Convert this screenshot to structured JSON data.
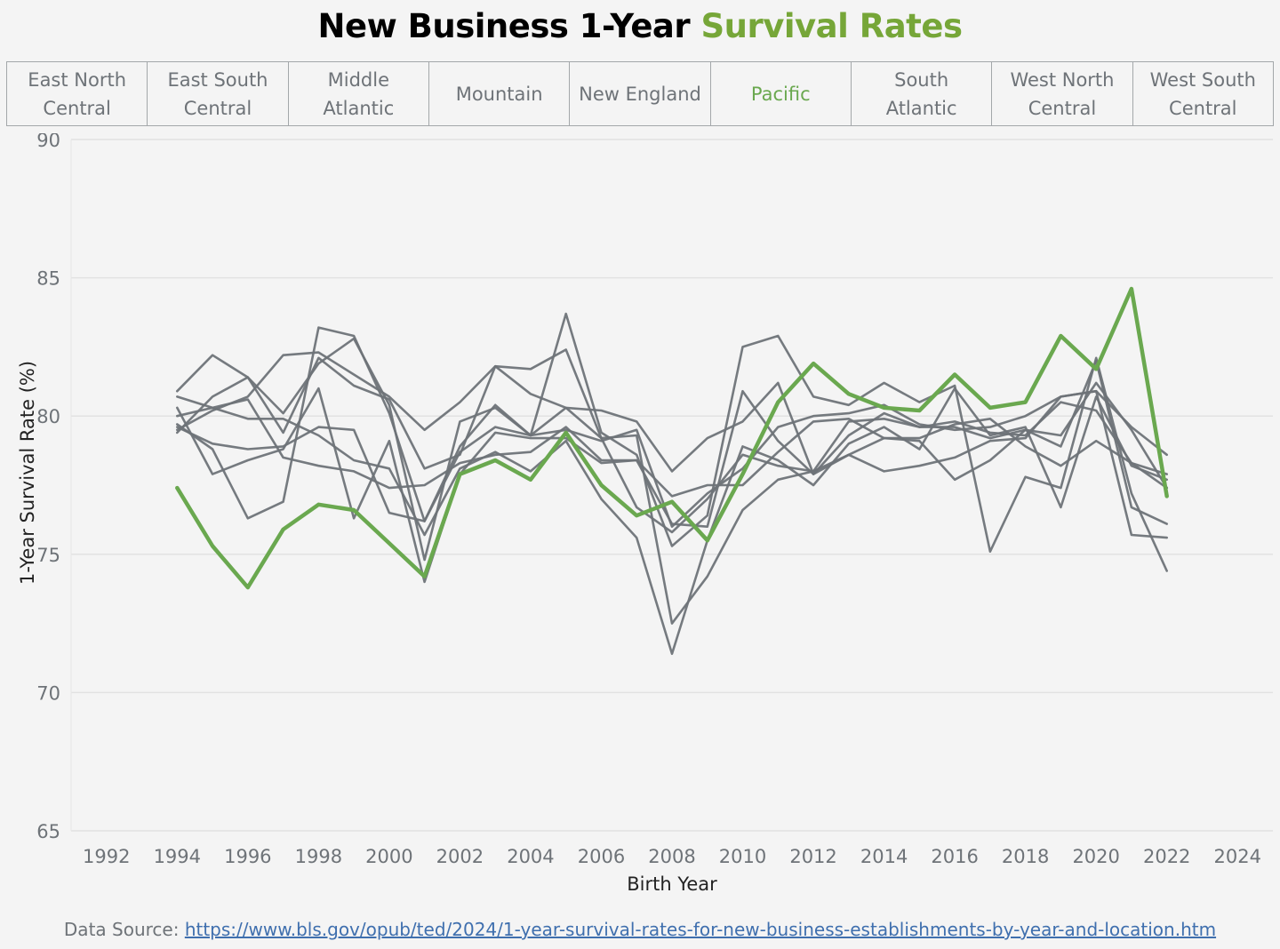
{
  "title": {
    "main": "New Business 1-Year ",
    "highlight": "Survival Rates"
  },
  "tabs": [
    {
      "label": "East North\nCentral",
      "active": false
    },
    {
      "label": "East South\nCentral",
      "active": false
    },
    {
      "label": "Middle\nAtlantic",
      "active": false
    },
    {
      "label": "Mountain",
      "active": false
    },
    {
      "label": "New England",
      "active": false
    },
    {
      "label": "Pacific",
      "active": true
    },
    {
      "label": "South\nAtlantic",
      "active": false
    },
    {
      "label": "West North\nCentral",
      "active": false
    },
    {
      "label": "West South\nCentral",
      "active": false
    }
  ],
  "source": {
    "prefix": "Data Source: ",
    "url": "https://www.bls.gov/opub/ted/2024/1-year-survival-rates-for-new-business-establishments-by-year-and-location.htm"
  },
  "colors": {
    "highlight": "#6aa84f",
    "other": "#6e7378",
    "grid": "#e2e2e2"
  },
  "chart_data": {
    "type": "line",
    "xlabel": "Birth Year",
    "ylabel": "1-Year Survival Rate (%)",
    "xlim": [
      1991,
      2025
    ],
    "ylim": [
      65,
      90
    ],
    "xticks": [
      1992,
      1994,
      1996,
      1998,
      2000,
      2002,
      2004,
      2006,
      2008,
      2010,
      2012,
      2014,
      2016,
      2018,
      2020,
      2022,
      2024
    ],
    "yticks": [
      65,
      70,
      75,
      80,
      85,
      90
    ],
    "grid": "horizontal",
    "highlight_series": "Pacific",
    "x": [
      1994,
      1995,
      1996,
      1997,
      1998,
      1999,
      2000,
      2001,
      2002,
      2003,
      2004,
      2005,
      2006,
      2007,
      2008,
      2009,
      2010,
      2011,
      2012,
      2013,
      2014,
      2015,
      2016,
      2017,
      2018,
      2019,
      2020,
      2021,
      2022
    ],
    "series": [
      {
        "name": "East North Central",
        "values": [
          80.9,
          82.2,
          81.4,
          80.1,
          81.9,
          82.8,
          80.4,
          74.8,
          79.8,
          80.3,
          79.3,
          79.5,
          79.1,
          79.5,
          76.0,
          77.2,
          78.1,
          79.6,
          80.0,
          80.1,
          80.4,
          79.7,
          79.5,
          79.6,
          80.0,
          80.7,
          80.9,
          79.6,
          78.6
        ]
      },
      {
        "name": "East South Central",
        "values": [
          80.3,
          77.9,
          78.4,
          78.8,
          81.0,
          76.3,
          79.1,
          74.0,
          77.9,
          79.4,
          79.2,
          79.2,
          78.3,
          78.4,
          76.1,
          76.0,
          80.9,
          79.1,
          77.9,
          78.6,
          78.0,
          78.2,
          78.5,
          79.1,
          79.2,
          80.7,
          80.9,
          75.7,
          75.6
        ]
      },
      {
        "name": "Middle Atlantic",
        "values": [
          79.7,
          78.8,
          76.3,
          76.9,
          83.2,
          82.9,
          80.1,
          76.2,
          78.9,
          80.4,
          79.3,
          83.7,
          79.4,
          78.6,
          75.3,
          76.4,
          82.5,
          82.9,
          80.7,
          80.4,
          81.2,
          80.5,
          81.1,
          75.1,
          77.8,
          77.4,
          82.1,
          77.2,
          74.4
        ]
      },
      {
        "name": "Mountain",
        "values": [
          79.5,
          80.2,
          80.7,
          82.2,
          82.3,
          81.5,
          80.7,
          79.5,
          80.5,
          81.8,
          80.8,
          80.3,
          80.2,
          79.8,
          78.0,
          79.2,
          79.8,
          81.2,
          77.9,
          79.3,
          80.1,
          79.6,
          79.6,
          79.2,
          79.5,
          79.3,
          81.2,
          79.5,
          77.4
        ]
      },
      {
        "name": "New England",
        "values": [
          79.6,
          79.0,
          78.8,
          78.9,
          79.6,
          79.5,
          76.5,
          76.2,
          78.7,
          79.6,
          79.3,
          80.3,
          79.2,
          79.3,
          72.5,
          74.2,
          76.6,
          77.7,
          78.0,
          78.6,
          79.2,
          79.1,
          77.7,
          78.4,
          79.5,
          78.9,
          82.0,
          76.7,
          76.1
        ]
      },
      {
        "name": "Pacific",
        "values": [
          77.4,
          75.3,
          73.8,
          75.9,
          76.8,
          76.6,
          75.4,
          74.2,
          77.9,
          78.4,
          77.7,
          79.4,
          77.5,
          76.4,
          76.9,
          75.5,
          77.9,
          80.5,
          81.9,
          80.8,
          80.3,
          80.2,
          81.5,
          80.3,
          80.5,
          82.9,
          81.7,
          84.6,
          77.1
        ]
      },
      {
        "name": "South Atlantic",
        "values": [
          79.4,
          80.7,
          81.4,
          79.4,
          82.1,
          81.1,
          80.6,
          78.1,
          78.6,
          81.8,
          81.7,
          82.4,
          79.2,
          76.7,
          75.8,
          77.0,
          78.6,
          78.2,
          78.0,
          79.8,
          79.9,
          79.6,
          79.8,
          79.4,
          79.3,
          80.5,
          80.2,
          78.3,
          77.9
        ]
      },
      {
        "name": "West North Central",
        "values": [
          80.0,
          80.3,
          79.9,
          79.9,
          79.3,
          78.4,
          78.1,
          75.7,
          78.1,
          78.7,
          78.0,
          79.1,
          77.0,
          75.6,
          71.4,
          75.5,
          78.9,
          78.4,
          77.5,
          79.0,
          79.6,
          78.8,
          81.0,
          79.3,
          79.6,
          76.7,
          80.7,
          78.2,
          77.7
        ]
      },
      {
        "name": "West South Central",
        "values": [
          80.7,
          80.3,
          80.6,
          78.5,
          78.2,
          78.0,
          77.4,
          77.5,
          78.3,
          78.6,
          78.7,
          79.6,
          78.4,
          78.4,
          77.1,
          77.5,
          77.5,
          78.7,
          79.8,
          79.9,
          79.2,
          79.2,
          79.7,
          79.9,
          78.9,
          78.2,
          79.1,
          78.3,
          77.4
        ]
      }
    ]
  }
}
